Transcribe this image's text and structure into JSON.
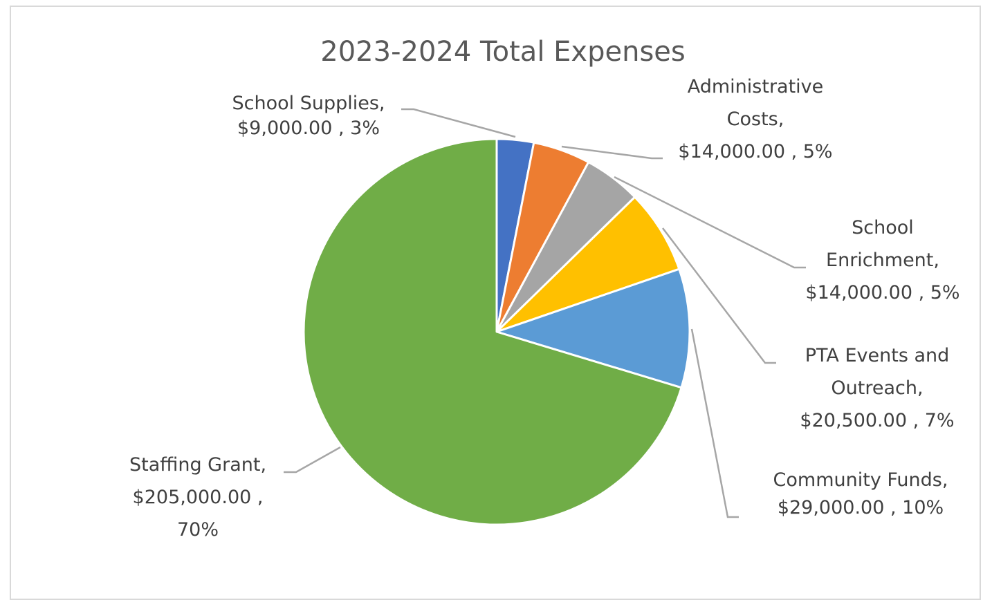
{
  "chart_data": {
    "type": "pie",
    "title": "2023-2024 Total Expenses",
    "categories": [
      "School Supplies",
      "Administrative Costs",
      "School Enrichment",
      "PTA Events and Outreach",
      "Community Funds",
      "Staffing Grant"
    ],
    "values": [
      9000.0,
      14000.0,
      14000.0,
      20500.0,
      29000.0,
      205000.0
    ],
    "percent_labels": [
      "3%",
      "5%",
      "5%",
      "7%",
      "10%",
      "70%"
    ],
    "value_labels": [
      "$9,000.00",
      "$14,000.00",
      "$14,000.00",
      "$20,500.00",
      "$29,000.00",
      "$205,000.00"
    ],
    "colors": [
      "#4472c4",
      "#ed7d31",
      "#a5a5a5",
      "#ffc000",
      "#5b9bd5",
      "#70ad47"
    ],
    "label_text": [
      [
        "School Supplies,",
        "$9,000.00 , 3%"
      ],
      [
        "Administrative",
        "Costs,",
        "$14,000.00 , 5%"
      ],
      [
        "School",
        "Enrichment,",
        "$14,000.00 , 5%"
      ],
      [
        "PTA Events and",
        "Outreach,",
        "$20,500.00 , 7%"
      ],
      [
        "Community Funds,",
        "$29,000.00 , 10%"
      ],
      [
        "Staffing Grant,",
        "$205,000.00 ,",
        "70%"
      ]
    ],
    "start_angle": "12 o'clock",
    "direction": "clockwise",
    "legend": "none",
    "slice_border_color": "#ffffff"
  }
}
